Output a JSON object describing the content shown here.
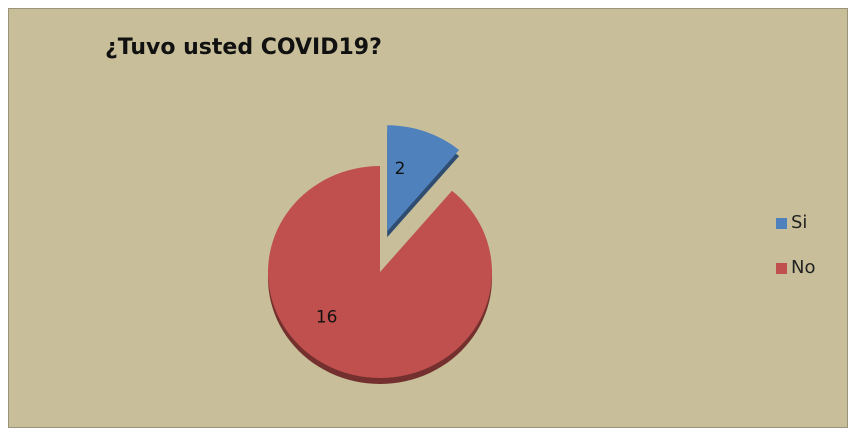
{
  "chart_data": {
    "type": "pie",
    "title": "¿Tuvo usted COVID19?",
    "categories": [
      "Si",
      "No"
    ],
    "values": [
      2,
      16
    ],
    "data_labels": [
      "2",
      "16"
    ],
    "exploded": [
      "Si"
    ],
    "legend_position": "right",
    "colors": {
      "Si": "#4f81bd",
      "No": "#c0504d",
      "background": "#c8bf9a"
    }
  }
}
